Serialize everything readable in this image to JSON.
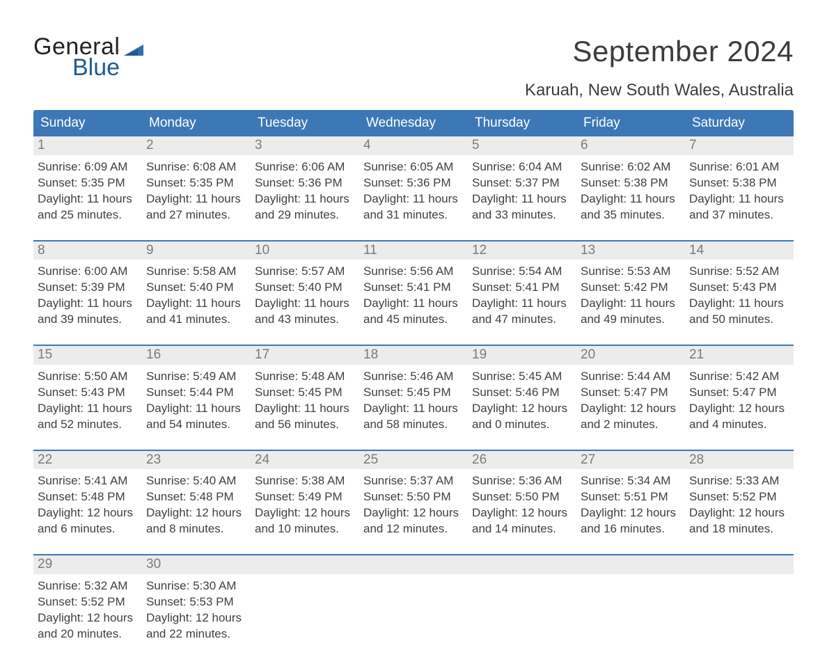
{
  "brand": {
    "word1": "General",
    "word2": "Blue",
    "flag_color": "#2f6fae"
  },
  "title": "September 2024",
  "location": "Karuah, New South Wales, Australia",
  "colors": {
    "header_bg": "#3b78b5",
    "header_text": "#ffffff",
    "daynum_bg": "#ececec",
    "daynum_text": "#7a7a7a",
    "body_text": "#404040",
    "row_sep": "#3b78b5"
  },
  "weekdays": [
    "Sunday",
    "Monday",
    "Tuesday",
    "Wednesday",
    "Thursday",
    "Friday",
    "Saturday"
  ],
  "start_weekday_index": 0,
  "days_in_month": 30,
  "days": [
    {
      "n": 1,
      "sunrise": "6:09 AM",
      "sunset": "5:35 PM",
      "daylight": "11 hours and 25 minutes."
    },
    {
      "n": 2,
      "sunrise": "6:08 AM",
      "sunset": "5:35 PM",
      "daylight": "11 hours and 27 minutes."
    },
    {
      "n": 3,
      "sunrise": "6:06 AM",
      "sunset": "5:36 PM",
      "daylight": "11 hours and 29 minutes."
    },
    {
      "n": 4,
      "sunrise": "6:05 AM",
      "sunset": "5:36 PM",
      "daylight": "11 hours and 31 minutes."
    },
    {
      "n": 5,
      "sunrise": "6:04 AM",
      "sunset": "5:37 PM",
      "daylight": "11 hours and 33 minutes."
    },
    {
      "n": 6,
      "sunrise": "6:02 AM",
      "sunset": "5:38 PM",
      "daylight": "11 hours and 35 minutes."
    },
    {
      "n": 7,
      "sunrise": "6:01 AM",
      "sunset": "5:38 PM",
      "daylight": "11 hours and 37 minutes."
    },
    {
      "n": 8,
      "sunrise": "6:00 AM",
      "sunset": "5:39 PM",
      "daylight": "11 hours and 39 minutes."
    },
    {
      "n": 9,
      "sunrise": "5:58 AM",
      "sunset": "5:40 PM",
      "daylight": "11 hours and 41 minutes."
    },
    {
      "n": 10,
      "sunrise": "5:57 AM",
      "sunset": "5:40 PM",
      "daylight": "11 hours and 43 minutes."
    },
    {
      "n": 11,
      "sunrise": "5:56 AM",
      "sunset": "5:41 PM",
      "daylight": "11 hours and 45 minutes."
    },
    {
      "n": 12,
      "sunrise": "5:54 AM",
      "sunset": "5:41 PM",
      "daylight": "11 hours and 47 minutes."
    },
    {
      "n": 13,
      "sunrise": "5:53 AM",
      "sunset": "5:42 PM",
      "daylight": "11 hours and 49 minutes."
    },
    {
      "n": 14,
      "sunrise": "5:52 AM",
      "sunset": "5:43 PM",
      "daylight": "11 hours and 50 minutes."
    },
    {
      "n": 15,
      "sunrise": "5:50 AM",
      "sunset": "5:43 PM",
      "daylight": "11 hours and 52 minutes."
    },
    {
      "n": 16,
      "sunrise": "5:49 AM",
      "sunset": "5:44 PM",
      "daylight": "11 hours and 54 minutes."
    },
    {
      "n": 17,
      "sunrise": "5:48 AM",
      "sunset": "5:45 PM",
      "daylight": "11 hours and 56 minutes."
    },
    {
      "n": 18,
      "sunrise": "5:46 AM",
      "sunset": "5:45 PM",
      "daylight": "11 hours and 58 minutes."
    },
    {
      "n": 19,
      "sunrise": "5:45 AM",
      "sunset": "5:46 PM",
      "daylight": "12 hours and 0 minutes."
    },
    {
      "n": 20,
      "sunrise": "5:44 AM",
      "sunset": "5:47 PM",
      "daylight": "12 hours and 2 minutes."
    },
    {
      "n": 21,
      "sunrise": "5:42 AM",
      "sunset": "5:47 PM",
      "daylight": "12 hours and 4 minutes."
    },
    {
      "n": 22,
      "sunrise": "5:41 AM",
      "sunset": "5:48 PM",
      "daylight": "12 hours and 6 minutes."
    },
    {
      "n": 23,
      "sunrise": "5:40 AM",
      "sunset": "5:48 PM",
      "daylight": "12 hours and 8 minutes."
    },
    {
      "n": 24,
      "sunrise": "5:38 AM",
      "sunset": "5:49 PM",
      "daylight": "12 hours and 10 minutes."
    },
    {
      "n": 25,
      "sunrise": "5:37 AM",
      "sunset": "5:50 PM",
      "daylight": "12 hours and 12 minutes."
    },
    {
      "n": 26,
      "sunrise": "5:36 AM",
      "sunset": "5:50 PM",
      "daylight": "12 hours and 14 minutes."
    },
    {
      "n": 27,
      "sunrise": "5:34 AM",
      "sunset": "5:51 PM",
      "daylight": "12 hours and 16 minutes."
    },
    {
      "n": 28,
      "sunrise": "5:33 AM",
      "sunset": "5:52 PM",
      "daylight": "12 hours and 18 minutes."
    },
    {
      "n": 29,
      "sunrise": "5:32 AM",
      "sunset": "5:52 PM",
      "daylight": "12 hours and 20 minutes."
    },
    {
      "n": 30,
      "sunrise": "5:30 AM",
      "sunset": "5:53 PM",
      "daylight": "12 hours and 22 minutes."
    }
  ],
  "labels": {
    "sunrise": "Sunrise:",
    "sunset": "Sunset:",
    "daylight": "Daylight:"
  }
}
